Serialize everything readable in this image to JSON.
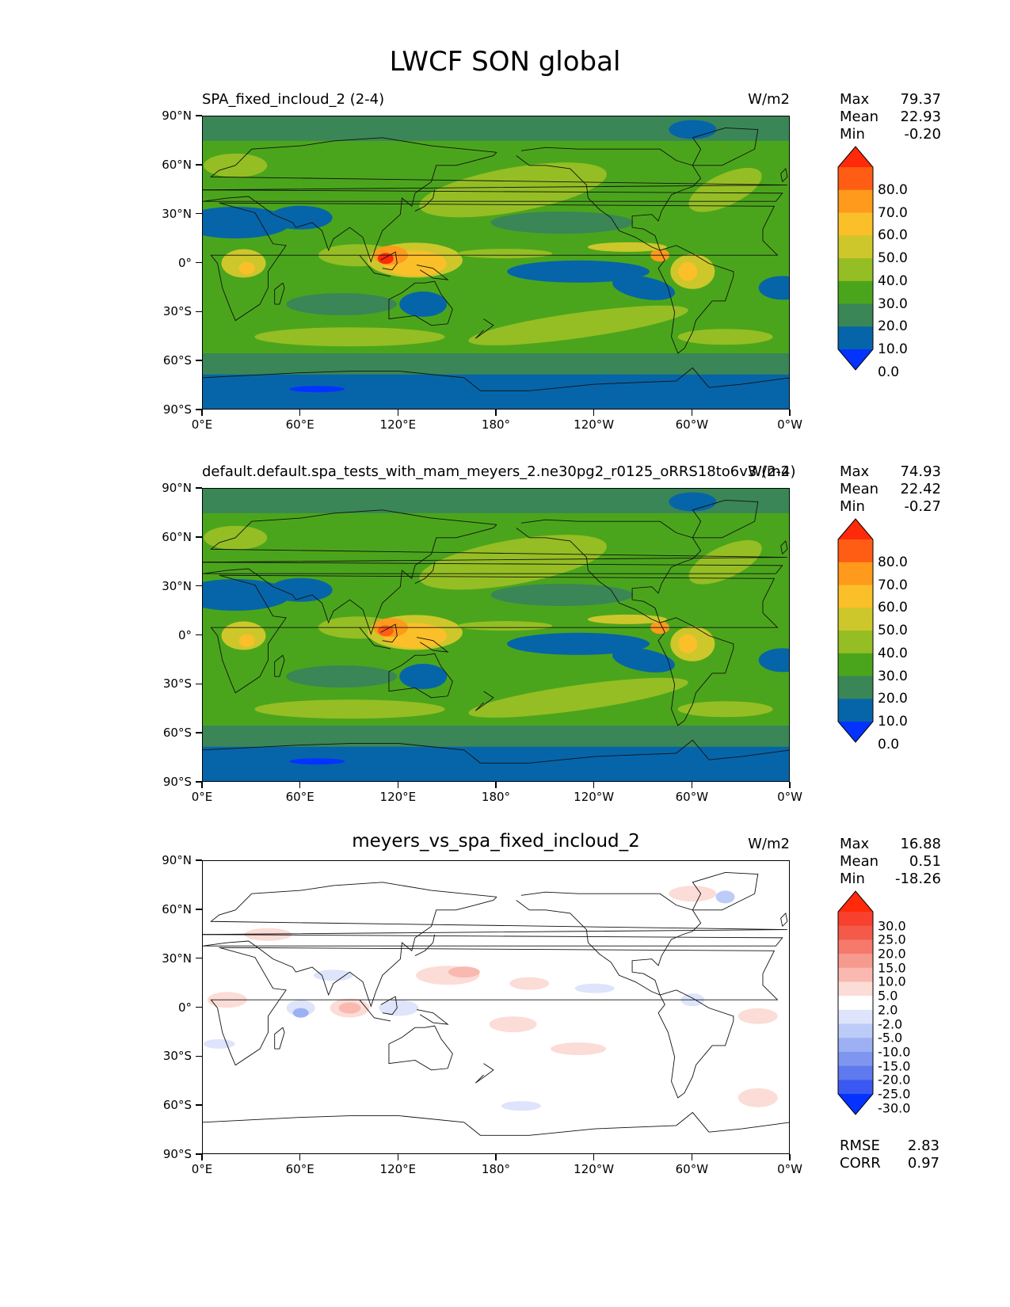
{
  "figure_title": "LWCF SON global",
  "chart_data": [
    {
      "type": "heatmap",
      "title": "SPA_fixed_incloud_2 (2-4)",
      "units": "W/m2",
      "stats": {
        "max_label": "Max",
        "max": "79.37",
        "mean_label": "Mean",
        "mean": "22.93",
        "min_label": "Min",
        "min": "-0.20"
      },
      "xticks": [
        "0°E",
        "60°E",
        "120°E",
        "180°",
        "120°W",
        "60°W",
        "0°W"
      ],
      "yticks": [
        "90°N",
        "60°N",
        "30°N",
        "0°",
        "30°S",
        "60°S",
        "90°S"
      ],
      "xlim": [
        0,
        360
      ],
      "ylim": [
        -90,
        90
      ],
      "levels": [
        "80.0",
        "70.0",
        "60.0",
        "50.0",
        "40.0",
        "30.0",
        "20.0",
        "10.0",
        "0.0"
      ],
      "colors": [
        "#ff2a0a",
        "#ff5d14",
        "#ff9a1c",
        "#fbbf29",
        "#cdc72c",
        "#95be24",
        "#4ba51c",
        "#3a8656",
        "#0665a8",
        "#0433ff"
      ]
    },
    {
      "type": "heatmap",
      "title": "default.default.spa_tests_with_mam_meyers_2.ne30pg2_r0125_oRRS18to6v3 (2-4)",
      "units": "W/m2",
      "stats": {
        "max_label": "Max",
        "max": "74.93",
        "mean_label": "Mean",
        "mean": "22.42",
        "min_label": "Min",
        "min": "-0.27"
      },
      "xticks": [
        "0°E",
        "60°E",
        "120°E",
        "180°",
        "120°W",
        "60°W",
        "0°W"
      ],
      "yticks": [
        "90°N",
        "60°N",
        "30°N",
        "0°",
        "30°S",
        "60°S",
        "90°S"
      ],
      "xlim": [
        0,
        360
      ],
      "ylim": [
        -90,
        90
      ],
      "levels": [
        "80.0",
        "70.0",
        "60.0",
        "50.0",
        "40.0",
        "30.0",
        "20.0",
        "10.0",
        "0.0"
      ],
      "colors": [
        "#ff2a0a",
        "#ff5d14",
        "#ff9a1c",
        "#fbbf29",
        "#cdc72c",
        "#95be24",
        "#4ba51c",
        "#3a8656",
        "#0665a8",
        "#0433ff"
      ]
    },
    {
      "type": "heatmap",
      "title": "meyers_vs_spa_fixed_incloud_2",
      "units": "W/m2",
      "stats": {
        "max_label": "Max",
        "max": "16.88",
        "mean_label": "Mean",
        "mean": "0.51",
        "min_label": "Min",
        "min": "-18.26"
      },
      "xticks": [
        "0°E",
        "60°E",
        "120°E",
        "180°",
        "120°W",
        "60°W",
        "0°W"
      ],
      "yticks": [
        "90°N",
        "60°N",
        "30°N",
        "0°",
        "30°S",
        "60°S",
        "90°S"
      ],
      "xlim": [
        0,
        360
      ],
      "ylim": [
        -90,
        90
      ],
      "levels": [
        "30.0",
        "25.0",
        "20.0",
        "15.0",
        "10.0",
        "5.0",
        "2.0",
        "-2.0",
        "-5.0",
        "-10.0",
        "-15.0",
        "-20.0",
        "-25.0",
        "-30.0"
      ],
      "colors": [
        "#ff2a0a",
        "#f7402e",
        "#f35a4a",
        "#f57a6c",
        "#f79a8e",
        "#f9b9b0",
        "#fcdcd6",
        "#ffffff",
        "#dde4fb",
        "#bccbf7",
        "#9cb0f3",
        "#7f96f0",
        "#5f79ee",
        "#3c58f3",
        "#0433ff"
      ],
      "rmse_label": "RMSE",
      "rmse": "2.83",
      "corr_label": "CORR",
      "corr": "0.97"
    }
  ]
}
